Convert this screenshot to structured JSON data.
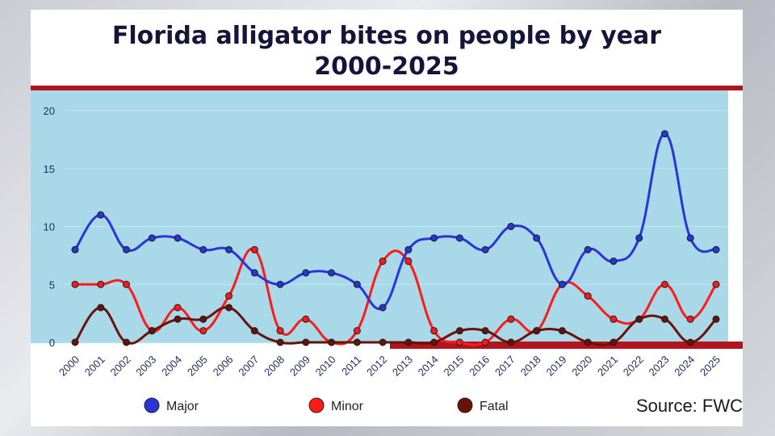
{
  "chart_data": {
    "type": "line",
    "title": "Florida alligator bites on people by year",
    "subtitle": "2000-2025",
    "categories": [
      "2000",
      "2001",
      "2002",
      "2003",
      "2004",
      "2005",
      "2006",
      "2007",
      "2008",
      "2009",
      "2010",
      "2011",
      "2012",
      "2013",
      "2014",
      "2015",
      "2016",
      "2017",
      "2018",
      "2019",
      "2020",
      "2021",
      "2022",
      "2023",
      "2024",
      "2025"
    ],
    "ylim": [
      0,
      20
    ],
    "yticks": [
      0,
      5,
      10,
      15,
      20
    ],
    "grid": true,
    "legend_placement": "bottom",
    "series": [
      {
        "name": "Major",
        "color": "#2a35d6",
        "values": [
          8,
          11,
          8,
          9,
          9,
          8,
          8,
          6,
          5,
          6,
          6,
          5,
          3,
          8,
          9,
          9,
          8,
          10,
          9,
          5,
          8,
          7,
          9,
          18,
          9,
          8
        ]
      },
      {
        "name": "Minor",
        "color": "#ff1a1a",
        "values": [
          5,
          5,
          5,
          1,
          3,
          1,
          4,
          8,
          1,
          2,
          0,
          1,
          7,
          7,
          1,
          0,
          0,
          2,
          1,
          5,
          4,
          2,
          2,
          5,
          2,
          5
        ]
      },
      {
        "name": "Fatal",
        "color": "#6a1208",
        "values": [
          0,
          3,
          0,
          1,
          2,
          2,
          3,
          1,
          0,
          0,
          0,
          0,
          0,
          0,
          0,
          1,
          1,
          0,
          1,
          1,
          0,
          0,
          2,
          2,
          0,
          2
        ]
      }
    ],
    "source": "Source: FWC"
  },
  "colors": {
    "plot_background": "#a9d8e8",
    "accent_bar": "#b0141c"
  }
}
